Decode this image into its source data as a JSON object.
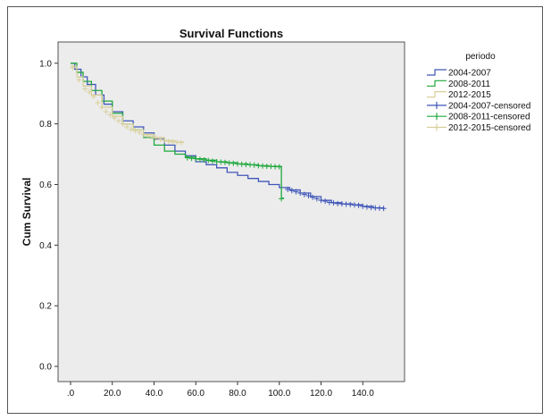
{
  "chart_data": {
    "type": "line",
    "title": "Survival Functions",
    "xlabel": "",
    "ylabel": "Cum Survival",
    "xlim": [
      -6,
      160
    ],
    "ylim": [
      -0.05,
      1.07
    ],
    "x_ticks": [
      {
        "value": 0,
        "label": ".0"
      },
      {
        "value": 20,
        "label": "20.0"
      },
      {
        "value": 40,
        "label": "40.0"
      },
      {
        "value": 60,
        "label": "60.0"
      },
      {
        "value": 80,
        "label": "80.0"
      },
      {
        "value": 100,
        "label": "100.0"
      },
      {
        "value": 120,
        "label": "120.0"
      },
      {
        "value": 140,
        "label": "140.0"
      }
    ],
    "y_ticks": [
      {
        "value": 0.0,
        "label": "0.0"
      },
      {
        "value": 0.2,
        "label": "0.2"
      },
      {
        "value": 0.4,
        "label": "0.4"
      },
      {
        "value": 0.6,
        "label": "0.6"
      },
      {
        "value": 0.8,
        "label": "0.8"
      },
      {
        "value": 1.0,
        "label": "1.0"
      }
    ],
    "grid": false,
    "legend_title": "periodo",
    "legend_position": "right",
    "series": [
      {
        "name": "2004-2007",
        "color": "#3f56b8",
        "points": [
          [
            0,
            1.0
          ],
          [
            2,
            0.98
          ],
          [
            5,
            0.955
          ],
          [
            8,
            0.93
          ],
          [
            12,
            0.895
          ],
          [
            16,
            0.865
          ],
          [
            20,
            0.84
          ],
          [
            25,
            0.81
          ],
          [
            30,
            0.79
          ],
          [
            35,
            0.77
          ],
          [
            40,
            0.75
          ],
          [
            45,
            0.73
          ],
          [
            50,
            0.71
          ],
          [
            55,
            0.695
          ],
          [
            60,
            0.675
          ],
          [
            65,
            0.665
          ],
          [
            70,
            0.655
          ],
          [
            75,
            0.64
          ],
          [
            80,
            0.63
          ],
          [
            85,
            0.62
          ],
          [
            90,
            0.61
          ],
          [
            95,
            0.6
          ],
          [
            100,
            0.59
          ],
          [
            105,
            0.582
          ],
          [
            110,
            0.572
          ],
          [
            115,
            0.56
          ],
          [
            120,
            0.548
          ],
          [
            125,
            0.54
          ],
          [
            130,
            0.536
          ],
          [
            135,
            0.533
          ],
          [
            140,
            0.528
          ],
          [
            145,
            0.523
          ],
          [
            150,
            0.521
          ]
        ]
      },
      {
        "name": "2008-2011",
        "color": "#1ea83c",
        "points": [
          [
            0,
            1.0
          ],
          [
            3,
            0.97
          ],
          [
            6,
            0.94
          ],
          [
            10,
            0.91
          ],
          [
            15,
            0.875
          ],
          [
            20,
            0.835
          ],
          [
            25,
            0.8
          ],
          [
            30,
            0.78
          ],
          [
            35,
            0.755
          ],
          [
            40,
            0.73
          ],
          [
            45,
            0.71
          ],
          [
            50,
            0.7
          ],
          [
            55,
            0.69
          ],
          [
            60,
            0.685
          ],
          [
            65,
            0.68
          ],
          [
            70,
            0.675
          ],
          [
            75,
            0.672
          ],
          [
            80,
            0.668
          ],
          [
            85,
            0.665
          ],
          [
            90,
            0.662
          ],
          [
            95,
            0.66
          ],
          [
            101,
            0.658
          ],
          [
            101,
            0.555
          ],
          [
            102,
            0.553
          ]
        ]
      },
      {
        "name": "2012-2015",
        "color": "#d8cf9a",
        "points": [
          [
            0,
            0.99
          ],
          [
            3,
            0.955
          ],
          [
            6,
            0.925
          ],
          [
            10,
            0.895
          ],
          [
            15,
            0.855
          ],
          [
            20,
            0.825
          ],
          [
            25,
            0.8
          ],
          [
            30,
            0.78
          ],
          [
            35,
            0.765
          ],
          [
            40,
            0.755
          ],
          [
            45,
            0.745
          ],
          [
            50,
            0.74
          ],
          [
            54,
            0.738
          ]
        ]
      }
    ],
    "censored_series": [
      {
        "name": "2004-2007-censored",
        "color": "#3f56b8",
        "points": [
          [
            104,
            0.584
          ],
          [
            106,
            0.58
          ],
          [
            108,
            0.576
          ],
          [
            110,
            0.572
          ],
          [
            112,
            0.567
          ],
          [
            114,
            0.563
          ],
          [
            116,
            0.558
          ],
          [
            118,
            0.553
          ],
          [
            120,
            0.548
          ],
          [
            122,
            0.545
          ],
          [
            124,
            0.541
          ],
          [
            126,
            0.539
          ],
          [
            128,
            0.537
          ],
          [
            130,
            0.536
          ],
          [
            132,
            0.535
          ],
          [
            134,
            0.534
          ],
          [
            136,
            0.533
          ],
          [
            138,
            0.531
          ],
          [
            140,
            0.528
          ],
          [
            142,
            0.526
          ],
          [
            144,
            0.524
          ],
          [
            146,
            0.523
          ],
          [
            148,
            0.522
          ],
          [
            150,
            0.521
          ]
        ]
      },
      {
        "name": "2008-2011-censored",
        "color": "#1ea83c",
        "points": [
          [
            56,
            0.688
          ],
          [
            58,
            0.686
          ],
          [
            60,
            0.685
          ],
          [
            62,
            0.683
          ],
          [
            64,
            0.681
          ],
          [
            66,
            0.679
          ],
          [
            68,
            0.677
          ],
          [
            70,
            0.675
          ],
          [
            72,
            0.674
          ],
          [
            74,
            0.673
          ],
          [
            76,
            0.671
          ],
          [
            78,
            0.67
          ],
          [
            80,
            0.668
          ],
          [
            82,
            0.667
          ],
          [
            84,
            0.666
          ],
          [
            86,
            0.665
          ],
          [
            88,
            0.664
          ],
          [
            90,
            0.662
          ],
          [
            92,
            0.661
          ],
          [
            94,
            0.66
          ],
          [
            96,
            0.66
          ],
          [
            98,
            0.659
          ],
          [
            100,
            0.658
          ],
          [
            101,
            0.553
          ]
        ]
      },
      {
        "name": "2012-2015-censored",
        "color": "#d8cf9a",
        "points": [
          [
            1,
            0.985
          ],
          [
            4,
            0.945
          ],
          [
            7,
            0.915
          ],
          [
            9,
            0.905
          ],
          [
            11,
            0.89
          ],
          [
            13,
            0.87
          ],
          [
            15,
            0.855
          ],
          [
            17,
            0.84
          ],
          [
            19,
            0.83
          ],
          [
            21,
            0.82
          ],
          [
            23,
            0.81
          ],
          [
            25,
            0.8
          ],
          [
            27,
            0.79
          ],
          [
            29,
            0.782
          ],
          [
            31,
            0.778
          ],
          [
            33,
            0.772
          ],
          [
            35,
            0.765
          ],
          [
            37,
            0.76
          ],
          [
            39,
            0.757
          ],
          [
            41,
            0.753
          ],
          [
            43,
            0.749
          ],
          [
            45,
            0.745
          ],
          [
            47,
            0.742
          ],
          [
            49,
            0.74
          ],
          [
            51,
            0.739
          ],
          [
            53,
            0.738
          ]
        ]
      }
    ]
  }
}
